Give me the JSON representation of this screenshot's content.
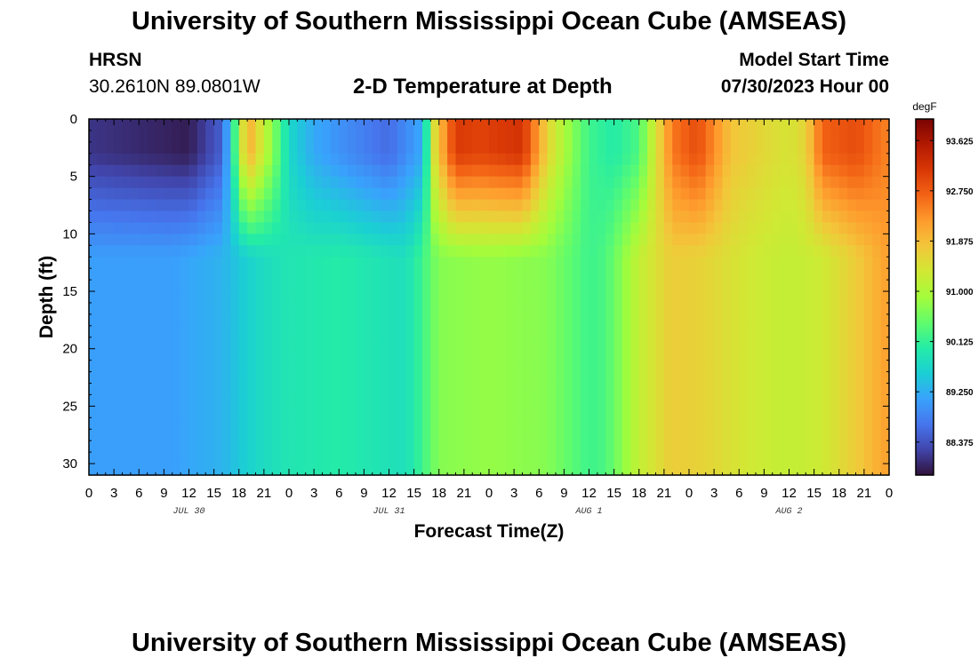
{
  "header": {
    "title": "University of Southern Mississippi Ocean Cube (AMSEAS)",
    "station": "HRSN",
    "coords": "30.2610N  89.0801W",
    "subtitle": "2-D Temperature at Depth",
    "model_start_label": "Model Start Time",
    "model_start_value": "07/30/2023 Hour 00"
  },
  "footer": {
    "title": "University of Southern Mississippi Ocean Cube (AMSEAS)"
  },
  "chart_data": {
    "type": "heatmap",
    "xlabel": "Forecast Time(Z)",
    "ylabel": "Depth (ft)",
    "ylim": [
      0,
      31
    ],
    "y_inverted": true,
    "y_ticks": [
      0,
      5,
      10,
      15,
      20,
      25,
      30
    ],
    "x_hours_range": [
      0,
      96
    ],
    "x_tick_labels": [
      "0",
      "3",
      "6",
      "9",
      "12",
      "15",
      "18",
      "21",
      "0",
      "3",
      "6",
      "9",
      "12",
      "15",
      "18",
      "21",
      "0",
      "3",
      "6",
      "9",
      "12",
      "15",
      "18",
      "21",
      "0",
      "3",
      "6",
      "9",
      "12",
      "15",
      "18",
      "21",
      "0"
    ],
    "date_labels": [
      {
        "label": "JUL 30",
        "hour": 12
      },
      {
        "label": "JUL 31",
        "hour": 36
      },
      {
        "label": "AUG 1",
        "hour": 60
      },
      {
        "label": "AUG 2",
        "hour": 84
      }
    ],
    "colorbar": {
      "unit": "degF",
      "min": 87.8,
      "max": 94.0,
      "ticks": [
        "93.625",
        "92.750",
        "91.875",
        "91.000",
        "90.125",
        "89.250",
        "88.375"
      ],
      "colors": [
        "#30123b",
        "#4145ab",
        "#4675ed",
        "#39a2fc",
        "#1bcfd4",
        "#24eca6",
        "#61fc6c",
        "#a4fc3b",
        "#d1e834",
        "#f3c63a",
        "#fe9b2d",
        "#f36315",
        "#d93806",
        "#b11901",
        "#7a0403"
      ]
    },
    "surface_profile_hours": [
      0,
      6,
      12,
      16,
      17,
      19,
      21,
      22.5,
      24,
      27,
      31,
      36,
      40,
      41.5,
      44,
      47,
      52,
      55,
      58,
      60,
      63,
      66,
      70,
      73,
      77,
      82,
      84,
      86,
      88,
      92,
      96
    ],
    "surface_profile_degF": [
      88.1,
      88.0,
      87.9,
      88.5,
      89.6,
      92.1,
      91.2,
      90.5,
      89.7,
      89.2,
      88.9,
      88.6,
      89.2,
      91.5,
      93.1,
      93.0,
      93.2,
      91.6,
      90.7,
      90.2,
      90.0,
      90.3,
      92.5,
      92.9,
      91.8,
      91.5,
      91.4,
      91.6,
      92.7,
      92.9,
      92.4
    ],
    "deep_profile_hours": [
      0,
      10,
      16,
      20,
      24,
      30,
      38,
      40,
      42,
      48,
      55,
      58,
      60,
      62,
      66,
      70,
      74,
      80,
      84,
      88,
      92,
      96
    ],
    "deep_profile_degF": [
      89.1,
      89.1,
      89.3,
      89.7,
      89.9,
      90.0,
      89.8,
      90.2,
      90.7,
      90.8,
      90.7,
      90.4,
      90.2,
      90.3,
      91.2,
      91.7,
      91.6,
      91.3,
      91.2,
      91.3,
      91.7,
      92.2
    ]
  }
}
